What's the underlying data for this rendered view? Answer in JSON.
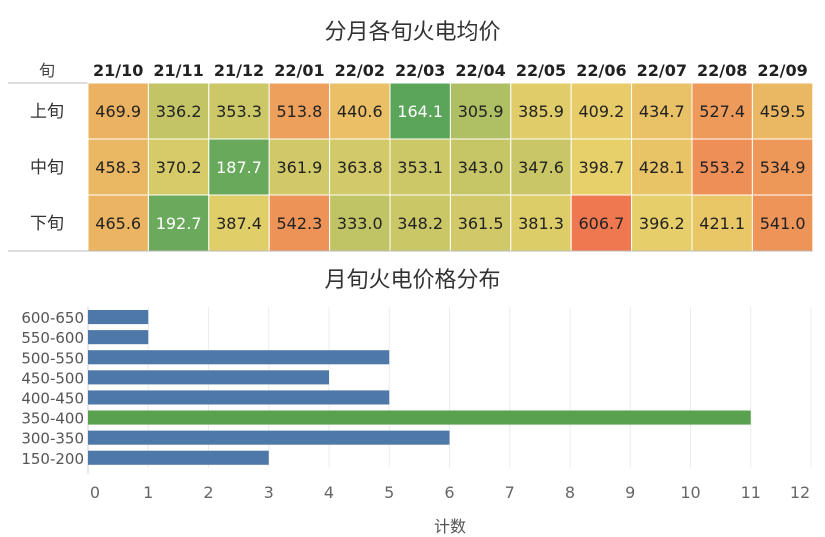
{
  "heatmap": {
    "title": "分月各旬火电均价",
    "row_header": "旬",
    "months": [
      "21/10",
      "21/11",
      "21/12",
      "22/01",
      "22/02",
      "22/03",
      "22/04",
      "22/05",
      "22/06",
      "22/07",
      "22/08",
      "22/09"
    ],
    "rows": [
      "上旬",
      "中旬",
      "下旬"
    ],
    "display_values": [
      [
        "469.9",
        "336.2",
        "353.3",
        "513.8",
        "440.6",
        "164.1",
        "305.9",
        "385.9",
        "409.2",
        "434.7",
        "527.4",
        "459.5"
      ],
      [
        "458.3",
        "370.2",
        "187.7",
        "361.9",
        "363.8",
        "353.1",
        "343.0",
        "347.6",
        "398.7",
        "428.1",
        "553.2",
        "534.9"
      ],
      [
        "465.6",
        "192.7",
        "387.4",
        "542.3",
        "333.0",
        "348.2",
        "361.5",
        "381.3",
        "606.7",
        "396.2",
        "421.1",
        "541.0"
      ]
    ],
    "colors": {
      "low": "#5aa55a",
      "mid": "#e8d06a",
      "high": "#f07850"
    }
  },
  "chart_data": [
    {
      "type": "heatmap",
      "title": "分月各旬火电均价",
      "x": [
        "21/10",
        "21/11",
        "21/12",
        "22/01",
        "22/02",
        "22/03",
        "22/04",
        "22/05",
        "22/06",
        "22/07",
        "22/08",
        "22/09"
      ],
      "y": [
        "上旬",
        "中旬",
        "下旬"
      ],
      "values": [
        [
          469.9,
          336.2,
          353.3,
          513.8,
          440.6,
          164.1,
          305.9,
          385.9,
          409.2,
          434.7,
          527.4,
          459.5
        ],
        [
          458.3,
          370.2,
          187.7,
          361.9,
          363.8,
          353.1,
          343.0,
          347.6,
          398.7,
          428.1,
          553.2,
          534.9
        ],
        [
          465.6,
          192.7,
          387.4,
          542.3,
          333.0,
          348.2,
          361.5,
          381.3,
          606.7,
          396.2,
          421.1,
          541.0
        ]
      ]
    },
    {
      "type": "bar",
      "orientation": "horizontal",
      "title": "月旬火电价格分布",
      "xlabel": "计数",
      "ylabel": "",
      "categories": [
        "600-650",
        "550-600",
        "500-550",
        "450-500",
        "400-450",
        "350-400",
        "300-350",
        "150-200"
      ],
      "values": [
        1,
        1,
        5,
        4,
        5,
        11,
        6,
        3
      ],
      "highlight": "350-400",
      "xlim": [
        0,
        12
      ],
      "xticks": [
        0,
        1,
        2,
        3,
        4,
        5,
        6,
        7,
        8,
        9,
        10,
        11,
        12
      ],
      "colors": {
        "default": "#4e78a8",
        "highlight": "#59a14f"
      }
    }
  ]
}
